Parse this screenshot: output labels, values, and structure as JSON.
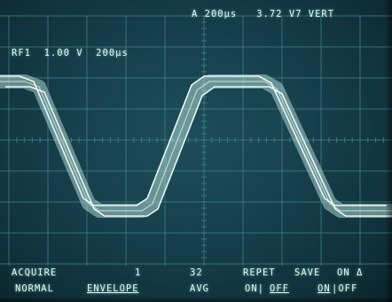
{
  "header": {
    "readout_top": "A 200μs   3.72 V7 VERT",
    "readout_reference": "RF1  1.00 V  200μs"
  },
  "menu": {
    "row1": [
      {
        "id": "acquire",
        "label": "ACQUIRE"
      },
      {
        "id": "count1",
        "label": "1"
      },
      {
        "id": "count32",
        "label": "32"
      },
      {
        "id": "repet",
        "label": "REPET"
      },
      {
        "id": "save",
        "label": "SAVE"
      },
      {
        "id": "on-delta",
        "label": "ON Δ"
      }
    ],
    "row2": [
      {
        "id": "normal",
        "label": "NORMAL"
      },
      {
        "id": "envelope",
        "label": "ENVELOPE",
        "selected": true
      },
      {
        "id": "avg",
        "label": "AVG"
      },
      {
        "id": "repet-on",
        "label": "ON|"
      },
      {
        "id": "repet-off",
        "label": "OFF",
        "selected": true
      },
      {
        "id": "save-on",
        "label": "ON",
        "selected": true
      },
      {
        "id": "save-off",
        "label": "|OFF"
      }
    ]
  },
  "trace": {
    "color": "#cdf3ea",
    "edge_color": "#f2fffb"
  }
}
